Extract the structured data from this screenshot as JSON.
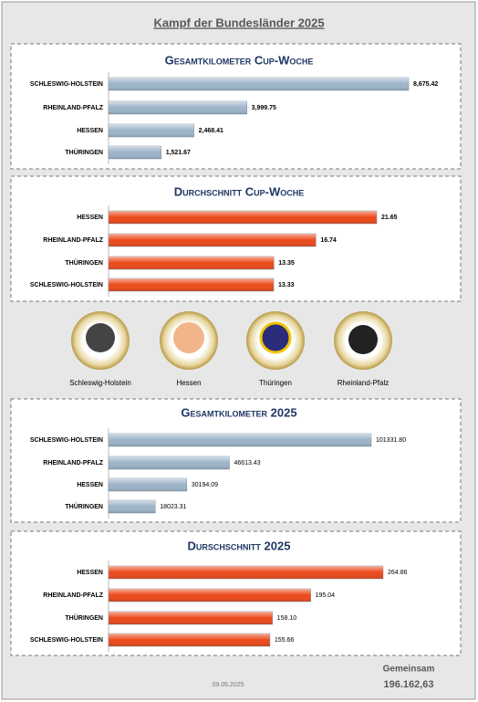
{
  "title": "Kampf der Bundesländer 2025",
  "chart_data": [
    {
      "type": "bar",
      "orientation": "horizontal",
      "title": "Gesamtkilometer Cup-Woche",
      "categories": [
        "SCHLESWIG-HOLSTEIN",
        "RHEINLAND-PFALZ",
        "HESSEN",
        "THÜRINGEN"
      ],
      "values": [
        8675.42,
        3999.75,
        2468.41,
        1521.67
      ],
      "value_labels": [
        "8,675.42",
        "3,999.75",
        "2,468.41",
        "1,521.67"
      ],
      "color": "#9db4c9"
    },
    {
      "type": "bar",
      "orientation": "horizontal",
      "title": "Durchschnitt Cup-Woche",
      "categories": [
        "HESSEN",
        "RHEINLAND-PFALZ",
        "THÜRINGEN",
        "SCHLESWIG-HOLSTEIN"
      ],
      "values": [
        21.65,
        16.74,
        13.35,
        13.33
      ],
      "value_labels": [
        "21.65",
        "16.74",
        "13.35",
        "13.33"
      ],
      "color": "#ec4a1c"
    },
    {
      "type": "bar",
      "orientation": "horizontal",
      "title": "Gesamtkilometer 2025",
      "categories": [
        "SCHLESWIG-HOLSTEIN",
        "RHEINLAND-PFALZ",
        "HESSEN",
        "THÜRINGEN"
      ],
      "values": [
        101331.8,
        46613.43,
        30194.09,
        18023.31
      ],
      "value_labels": [
        "101331.80",
        "46613.43",
        "30194.09",
        "18023.31"
      ],
      "color": "#9db4c9"
    },
    {
      "type": "bar",
      "orientation": "horizontal",
      "title": "Durschschnitt 2025",
      "categories": [
        "HESSEN",
        "RHEINLAND-PFALZ",
        "THÜRINGEN",
        "SCHLESWIG-HOLSTEIN"
      ],
      "values": [
        264.86,
        195.04,
        158.1,
        155.66
      ],
      "value_labels": [
        "264.86",
        "195.04",
        "158.10",
        "155.66"
      ],
      "color": "#ec4a1c"
    }
  ],
  "logos": [
    "Schleswig-Holstein",
    "Hessen",
    "Thüringen",
    "Rheinland-Pfalz"
  ],
  "footer": {
    "date": "09.05.2025",
    "total_label": "Gemeinsam",
    "total": "196.162,63"
  }
}
